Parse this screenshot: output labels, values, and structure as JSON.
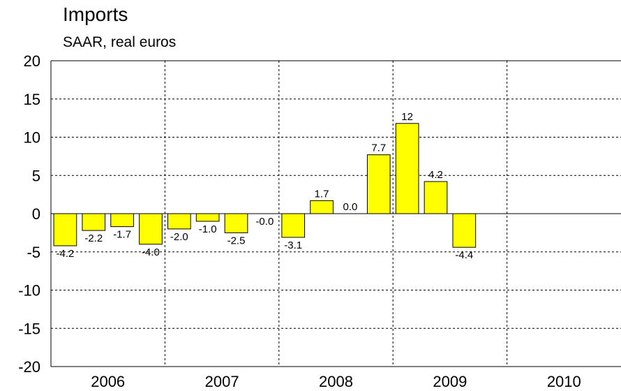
{
  "chart_data": {
    "type": "bar",
    "title": "Imports",
    "subtitle": "SAAR, real euros",
    "groups": [
      "2006",
      "2007",
      "2008",
      "2009",
      "2010"
    ],
    "values": [
      -4.2,
      -2.2,
      -1.7,
      -4.0,
      -2.0,
      -1.0,
      -2.5,
      -0.0,
      -3.1,
      1.7,
      0.0,
      7.7,
      11.8,
      4.2,
      -4.4,
      null,
      null,
      null,
      null,
      null
    ],
    "value_labels": [
      "-4.2",
      "-2.2",
      "-1.7",
      "-4.0",
      "-2.0",
      "-1.0",
      "-2.5",
      "-0.0",
      "-3.1",
      "1.7",
      "0.0",
      "7.7",
      "12",
      "4.2",
      "-4.4",
      null,
      null,
      null,
      null,
      null
    ],
    "color": "#ffff00",
    "ylim": [
      -20,
      20
    ],
    "yticks": [
      -20,
      -15,
      -10,
      -5,
      0,
      5,
      10,
      15,
      20
    ],
    "grid": true
  }
}
